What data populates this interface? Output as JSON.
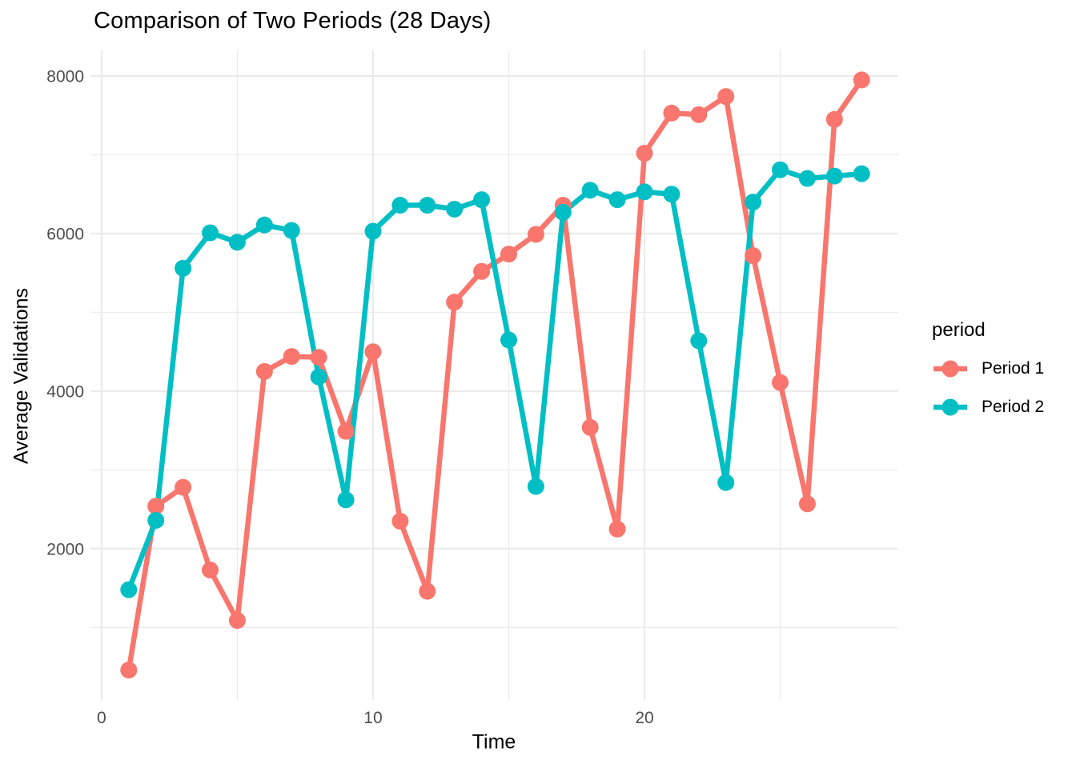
{
  "page": {
    "background_color": "#FFFFFF"
  },
  "chart_data": {
    "type": "line",
    "title": "Comparison of Two Periods (28 Days)",
    "xlabel": "Time",
    "ylabel": "Average Validations",
    "legend_title": "period",
    "legend_position": "right",
    "grid": true,
    "gridline_color": "#EBEBEB",
    "tick_label_color": "#4D4D4D",
    "title_color": "#000000",
    "x_ticks": [
      0,
      10,
      20
    ],
    "x_minor_gridlines": [
      5,
      15,
      25
    ],
    "y_ticks": [
      2000,
      4000,
      6000,
      8000
    ],
    "y_minor_gridlines": [
      1000,
      3000,
      5000,
      7000
    ],
    "xlim": [
      -0.41,
      29.35
    ],
    "ylim": [
      80,
      8325
    ],
    "x": [
      1,
      2,
      3,
      4,
      5,
      6,
      7,
      8,
      9,
      10,
      11,
      12,
      13,
      14,
      15,
      16,
      17,
      18,
      19,
      20,
      21,
      22,
      23,
      24,
      25,
      26,
      27,
      28
    ],
    "series": [
      {
        "name": "Period 1",
        "color": "#F8766D",
        "values": [
          460,
          2540,
          2780,
          1730,
          1090,
          4250,
          4440,
          4430,
          3490,
          4500,
          2350,
          1460,
          5130,
          5520,
          5740,
          5990,
          6360,
          3540,
          2250,
          7020,
          7530,
          7510,
          7740,
          5720,
          4110,
          2570,
          7450,
          7950
        ]
      },
      {
        "name": "Period 2",
        "color": "#00BFC4",
        "values": [
          1480,
          2360,
          5560,
          6010,
          5890,
          6110,
          6040,
          4180,
          2620,
          6030,
          6360,
          6360,
          6310,
          6430,
          4650,
          2790,
          6270,
          6550,
          6430,
          6530,
          6500,
          4640,
          2840,
          6400,
          6810,
          6700,
          6730,
          6760
        ]
      }
    ]
  }
}
